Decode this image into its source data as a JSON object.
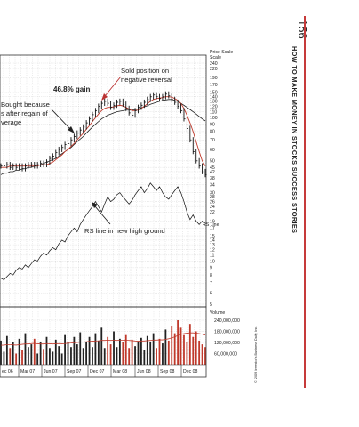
{
  "page": {
    "number": "156",
    "book_title": "HOW TO MAKE MONEY IN STOCKS SUCCESS STORIES",
    "rule_color": "#c63a3a"
  },
  "chart_data": {
    "type": "stock-chart",
    "price_scale_label": "Price Scale",
    "price_ticks": [
      240,
      220,
      190,
      170,
      150,
      140,
      130,
      120,
      110,
      100,
      90,
      80,
      70,
      60,
      50,
      45,
      42,
      38,
      34,
      30,
      28,
      26,
      24,
      22,
      19,
      17,
      15,
      14,
      13,
      12,
      11,
      10,
      9,
      8,
      7,
      6,
      5
    ],
    "volume_label": "Volume",
    "volume_ticks": [
      "240,000,000",
      "180,000,000",
      "120,000,000",
      "60,000,000"
    ],
    "volume_tick_values": [
      240000000,
      180000000,
      120000000,
      60000000
    ],
    "x_tick_labels": [
      "ec 06",
      "Mar 07",
      "Jun 07",
      "Sep 07",
      "Dec 07",
      "Mar 08",
      "Jun 08",
      "Sep 08",
      "Dec 08"
    ],
    "annotations": {
      "sold": [
        "Sold position on",
        "negative reversal"
      ],
      "gain": "46.8% gain",
      "bought": [
        "Bought because",
        "s after regain of",
        "verage"
      ],
      "rs_high": "RS line in new high ground",
      "rs_label": "RS Line"
    },
    "copyright": "© 2009 Investor's Business Daily, Inc.",
    "colors": {
      "price": "#111111",
      "ma_red": "#c0392b",
      "ma_black": "#222222",
      "grid": "#bbbbbb",
      "volume_red": "#c0392b",
      "volume_black": "#222222"
    },
    "series": {
      "price_weekly": [
        46,
        46,
        47,
        45,
        46,
        45,
        46,
        44,
        46,
        47,
        47,
        46,
        47,
        48,
        47,
        49,
        52,
        54,
        57,
        60,
        62,
        65,
        66,
        70,
        74,
        78,
        82,
        86,
        92,
        98,
        105,
        112,
        120,
        126,
        130,
        126,
        118,
        122,
        128,
        130,
        124,
        116,
        108,
        104,
        112,
        118,
        122,
        128,
        134,
        140,
        144,
        140,
        136,
        140,
        146,
        142,
        134,
        128,
        120,
        112,
        98,
        84,
        70,
        58,
        50,
        46,
        42,
        40
      ],
      "ma_red": [
        45,
        45,
        45,
        46,
        46,
        46,
        46,
        46,
        46,
        46,
        46,
        46,
        46,
        47,
        47,
        47,
        48,
        49,
        51,
        53,
        55,
        58,
        60,
        63,
        66,
        70,
        74,
        78,
        83,
        88,
        94,
        100,
        106,
        112,
        116,
        118,
        118,
        119,
        121,
        122,
        121,
        118,
        115,
        112,
        112,
        113,
        116,
        120,
        125,
        130,
        134,
        136,
        137,
        138,
        140,
        140,
        139,
        136,
        132,
        126,
        116,
        104,
        92,
        80,
        68,
        58,
        50,
        46
      ],
      "ma_black": [
        40,
        41,
        41,
        42,
        42,
        43,
        43,
        44,
        44,
        45,
        45,
        46,
        46,
        47,
        48,
        49,
        50,
        51,
        52,
        54,
        56,
        58,
        60,
        62,
        65,
        68,
        71,
        74,
        78,
        82,
        86,
        90,
        94,
        98,
        101,
        104,
        106,
        108,
        110,
        111,
        112,
        113,
        113,
        113,
        114,
        115,
        117,
        119,
        121,
        124,
        126,
        128,
        130,
        132,
        133,
        134,
        134,
        132,
        130,
        126,
        122,
        118,
        114,
        110,
        106,
        102,
        98,
        95
      ],
      "rs_line": [
        7.6,
        7.4,
        7.8,
        8.2,
        8.0,
        8.6,
        9.0,
        8.8,
        9.4,
        9.0,
        9.6,
        10.2,
        10.0,
        10.8,
        11.4,
        11.0,
        11.8,
        12.4,
        12.0,
        13.2,
        14.0,
        13.6,
        15.0,
        16.0,
        17.0,
        16.0,
        18.0,
        19.5,
        21.0,
        22.5,
        24.0,
        26.0,
        24.0,
        22.0,
        25.0,
        28.0,
        26.0,
        27.0,
        29.0,
        30.0,
        28.0,
        26.5,
        25.0,
        26.5,
        29.0,
        31.0,
        33.0,
        30.0,
        32.0,
        35.0,
        33.0,
        31.0,
        33.0,
        30.0,
        28.0,
        27.0,
        29.0,
        31.0,
        33.0,
        30.0,
        26.0,
        22.0,
        19.5,
        21.0,
        19.0,
        18.0,
        19.0,
        18.5
      ],
      "volume_weekly_millions": [
        130,
        70,
        155,
        90,
        120,
        60,
        140,
        80,
        170,
        95,
        110,
        140,
        60,
        125,
        85,
        150,
        90,
        70,
        135,
        100,
        60,
        160,
        120,
        95,
        150,
        110,
        175,
        90,
        125,
        150,
        95,
        170,
        130,
        200,
        90,
        150,
        110,
        180,
        95,
        140,
        120,
        160,
        90,
        135,
        100,
        120,
        145,
        80,
        155,
        125,
        170,
        90,
        140,
        115,
        190,
        130,
        210,
        170,
        240,
        200,
        160,
        120,
        220,
        150,
        180,
        130,
        110,
        95
      ],
      "volume_ma_millions": [
        105,
        106,
        108,
        108,
        107,
        106,
        108,
        110,
        112,
        112,
        114,
        115,
        113,
        112,
        112,
        114,
        113,
        112,
        113,
        114,
        113,
        114,
        116,
        117,
        119,
        120,
        122,
        123,
        124,
        126,
        127,
        128,
        129,
        131,
        131,
        132,
        131,
        132,
        131,
        132,
        132,
        133,
        131,
        130,
        128,
        127,
        128,
        128,
        130,
        131,
        133,
        133,
        134,
        134,
        137,
        140,
        145,
        150,
        158,
        164,
        168,
        170,
        172,
        172,
        170,
        168,
        165,
        160
      ]
    }
  }
}
